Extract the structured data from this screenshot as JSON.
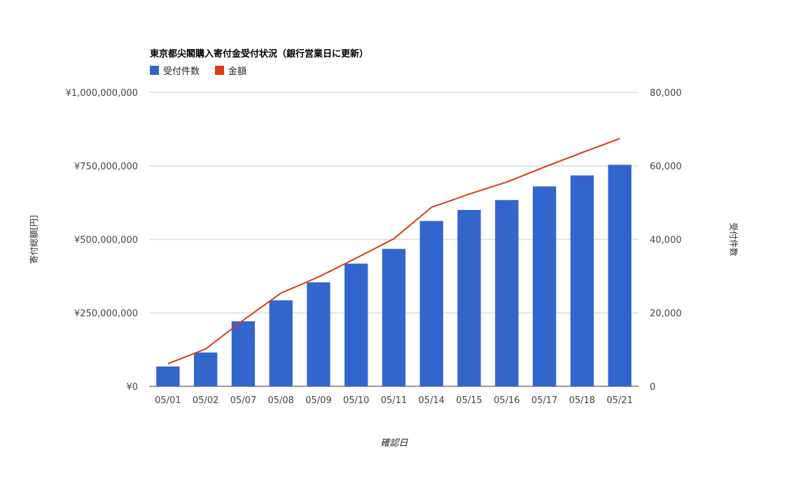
{
  "chart_data": {
    "type": "bar",
    "title": "東京都尖閣購入寄付金受付状況（銀行営業日に更新）",
    "xlabel": "確認日",
    "ylabel_left": "寄付総額[円]",
    "ylabel_right": "受付件数",
    "categories": [
      "05/01",
      "05/02",
      "05/07",
      "05/08",
      "05/09",
      "05/10",
      "05/11",
      "05/14",
      "05/15",
      "05/16",
      "05/17",
      "05/18",
      "05/21"
    ],
    "left_axis": {
      "ylim": [
        0,
        1000000000
      ],
      "ticks": [
        0,
        250000000,
        500000000,
        750000000,
        1000000000
      ],
      "tick_labels": [
        "¥0",
        "¥250,000,000",
        "¥500,000,000",
        "¥750,000,000",
        "¥1,000,000,000"
      ]
    },
    "right_axis": {
      "ylim": [
        0,
        80000
      ],
      "ticks": [
        0,
        20000,
        40000,
        60000,
        80000
      ],
      "tick_labels": [
        "0",
        "20,000",
        "40,000",
        "60,000",
        "80,000"
      ]
    },
    "grid": true,
    "legend": "top-left",
    "series": [
      {
        "name": "受付件数",
        "type": "bar",
        "axis": "right",
        "color": "#3366cc",
        "values": [
          5400,
          9200,
          17700,
          23400,
          28300,
          33400,
          37400,
          45000,
          48000,
          50700,
          54400,
          57400,
          60300
        ]
      },
      {
        "name": "金額",
        "type": "line",
        "axis": "left",
        "color": "#dc3912",
        "values": [
          77000000,
          127000000,
          225000000,
          317000000,
          372000000,
          436000000,
          502000000,
          609000000,
          654000000,
          695000000,
          746000000,
          795000000,
          843000000
        ]
      }
    ]
  }
}
